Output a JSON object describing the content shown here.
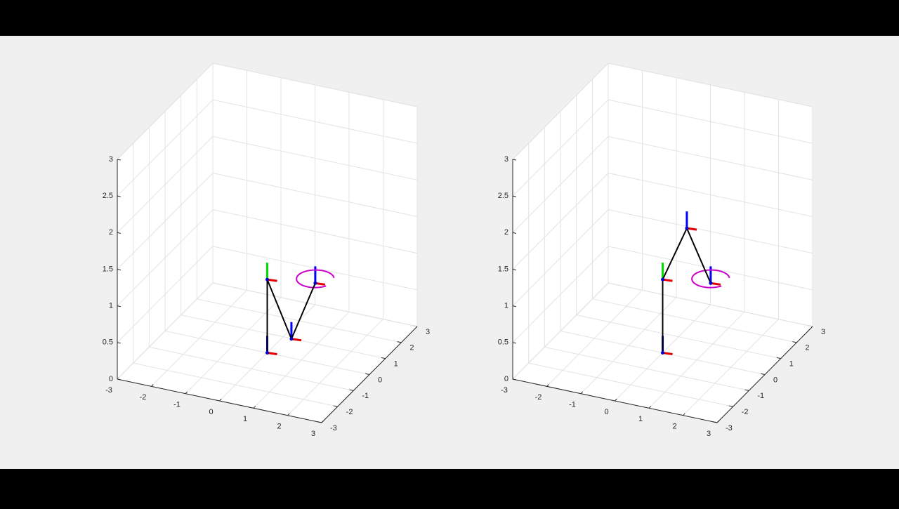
{
  "chart_data": [
    {
      "type": "line3d",
      "color": "#000000",
      "x": [
        0,
        0,
        0.71,
        1.41
      ],
      "y": [
        0,
        0,
        0,
        0
      ],
      "z": [
        0,
        1,
        0.26,
        1.09
      ],
      "circle": {
        "center": [
          1.41,
          0,
          1.15
        ],
        "radius": 0.5,
        "color": "#cc00cc"
      },
      "xlim": [
        -3,
        3
      ],
      "ylim": [
        -3,
        3
      ],
      "zlim": [
        0,
        3
      ],
      "xticks": [
        -3,
        -2,
        -1,
        0,
        1,
        2,
        3
      ],
      "yticks": [
        -3,
        -2,
        -1,
        0,
        1,
        2,
        3
      ],
      "zticks": [
        0,
        0.5,
        1,
        1.5,
        2,
        2.5,
        3
      ],
      "grid": true
    },
    {
      "type": "line3d",
      "color": "#000000",
      "x": [
        0,
        0,
        0.71,
        1.41
      ],
      "y": [
        0,
        0,
        0,
        0
      ],
      "z": [
        0,
        1,
        1.77,
        1.09
      ],
      "circle": {
        "center": [
          1.41,
          0,
          1.15
        ],
        "radius": 0.5,
        "color": "#cc00cc"
      },
      "xlim": [
        -3,
        3
      ],
      "ylim": [
        -3,
        3
      ],
      "zlim": [
        0,
        3
      ],
      "xticks": [
        -3,
        -2,
        -1,
        0,
        1,
        2,
        3
      ],
      "yticks": [
        -3,
        -2,
        -1,
        0,
        1,
        2,
        3
      ],
      "zticks": [
        0,
        0.5,
        1,
        1.5,
        2,
        2.5,
        3
      ],
      "grid": true
    }
  ]
}
